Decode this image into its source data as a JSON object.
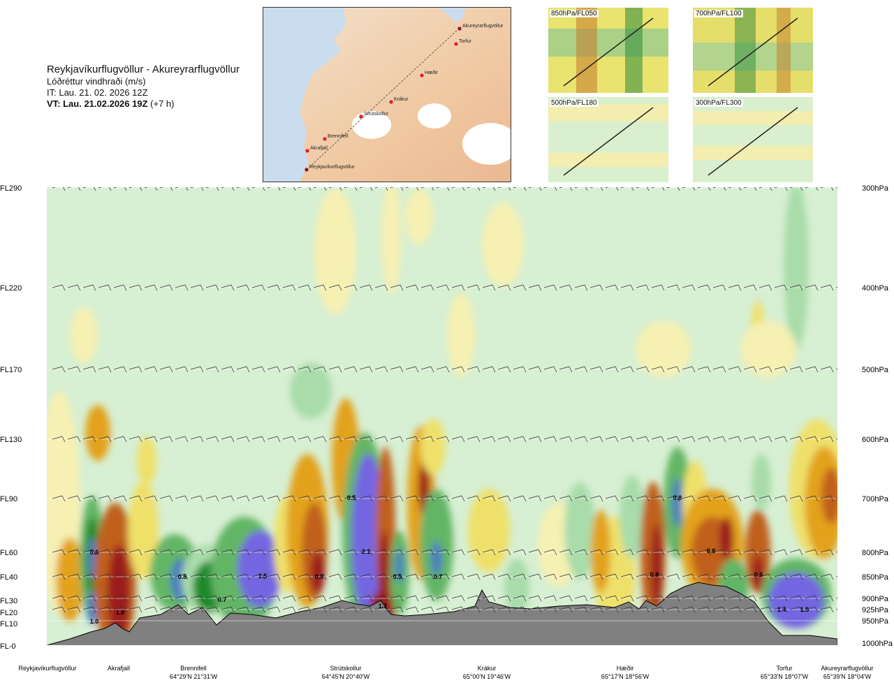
{
  "header": {
    "title": "Reykjavíkurflugvöllur - Akureyrarflugvöllur",
    "subtitle": "Lóðréttur vindhraði (m/s)",
    "issue_time": "IT: Lau. 21. 02. 2026 12Z",
    "valid_time_bold": "VT: Lau. 21.02.2026 19Z",
    "valid_time_offset": "(+7 h)"
  },
  "route_map": {
    "waypoints": [
      {
        "name": "Akureyrarflugvöllur"
      },
      {
        "name": "Torfur"
      },
      {
        "name": "Hæðir"
      },
      {
        "name": "Krákur"
      },
      {
        "name": "Strútskollur"
      },
      {
        "name": "Brennifell"
      },
      {
        "name": "Akrafjall"
      },
      {
        "name": "Reykjavíkurflugvöllur"
      }
    ]
  },
  "thumbnails": [
    {
      "label": "850hPa/FL050"
    },
    {
      "label": "700hPa/FL100"
    },
    {
      "label": "500hPa/FL180"
    },
    {
      "label": "300hPa/FL300"
    }
  ],
  "chart_data": {
    "type": "heatmap",
    "title": "Reykjavíkurflugvöllur - Akureyrarflugvöllur",
    "variable": "Lóðréttur vindhraði (m/s)",
    "left_axis_labels": [
      "FL290",
      "FL220",
      "FL170",
      "FL130",
      "FL90",
      "FL60",
      "FL40",
      "FL30",
      "FL20",
      "FL10",
      "FL-0"
    ],
    "right_axis_labels": [
      "300hPa",
      "400hPa",
      "500hPa",
      "600hPa",
      "700hPa",
      "800hPa",
      "850hPa",
      "900hPa",
      "925hPa",
      "950hPa",
      "1000hPa"
    ],
    "pressure_levels": [
      300,
      400,
      500,
      600,
      700,
      800,
      850,
      900,
      925,
      950,
      1000
    ],
    "stations": [
      {
        "name": "Reykjavíkurflugvöllur",
        "coords": ""
      },
      {
        "name": "Akrafjall",
        "coords": ""
      },
      {
        "name": "Brennifell",
        "coords": "64°29'N 21°31'W"
      },
      {
        "name": "Strútskollur",
        "coords": "64°45'N 20°40'W"
      },
      {
        "name": "Krákur",
        "coords": "65°00'N 19°46'W"
      },
      {
        "name": "Hæðir",
        "coords": "65°17'N 18°56'W"
      },
      {
        "name": "Torfur",
        "coords": "65°33'N 18°07'W"
      },
      {
        "name": "Akureyrarflugvöllur",
        "coords": "65°39'N 18°04'W"
      }
    ],
    "value_labels": [
      "0.6",
      "1.0",
      "1.8",
      "0.8",
      "0.7",
      "1.5",
      "0.8",
      "0.5",
      "2.1",
      "1.7",
      "0.5",
      "0.7",
      "0.8",
      "0.8",
      "0.8",
      "0.6",
      "1.4",
      "1.5"
    ],
    "colors": {
      "strong_down": "#9b1b1b",
      "down2": "#c0601a",
      "down1": "#e3a21d",
      "weak_down": "#efe06a",
      "weak_down2": "#f6f0b3",
      "neutral": "#d7efd2",
      "weak_up": "#eefae9",
      "up1": "#a9dcaa",
      "up2": "#63b566",
      "up3": "#1f8a2c",
      "strong_up": "#4c7fbf",
      "very_strong_up": "#7366e0",
      "terrain": "#808080"
    }
  }
}
